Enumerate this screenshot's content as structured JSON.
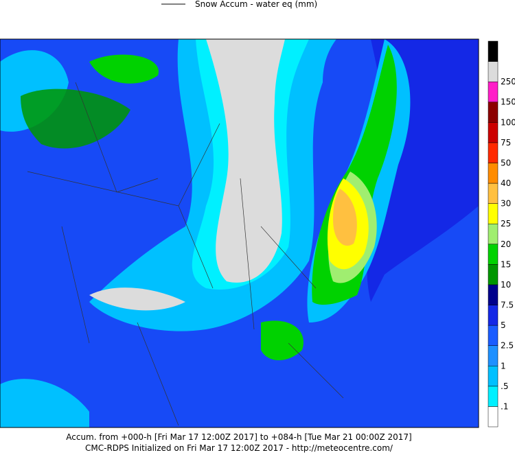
{
  "legend": {
    "line_label": "Snow Accum - water eq (mm)"
  },
  "colorbar": {
    "colors": [
      "#ffffff",
      "#00f0ff",
      "#00c0ff",
      "#1e90ff",
      "#1a5cff",
      "#1428e6",
      "#00008c",
      "#009600",
      "#00d200",
      "#a0ee70",
      "#ffff00",
      "#ffc040",
      "#ff8c00",
      "#ff2a00",
      "#cc0000",
      "#8c0000",
      "#ff1ec8",
      "#dcdcdc",
      "#000000"
    ],
    "labels": [
      ".1",
      ".5",
      "1",
      "2.5",
      "5",
      "7.5",
      "10",
      "15",
      "20",
      "25",
      "30",
      "40",
      "50",
      "75",
      "100",
      "150",
      "250"
    ]
  },
  "footer": {
    "line1": "Accum. from +000-h [Fri Mar 17 12:00Z 2017] to +084-h [Tue Mar 21 00:00Z 2017]",
    "line2": "CMC-RDPS Initialized on Fri Mar 17 12:00Z 2017 - http://meteocentre.com/"
  }
}
